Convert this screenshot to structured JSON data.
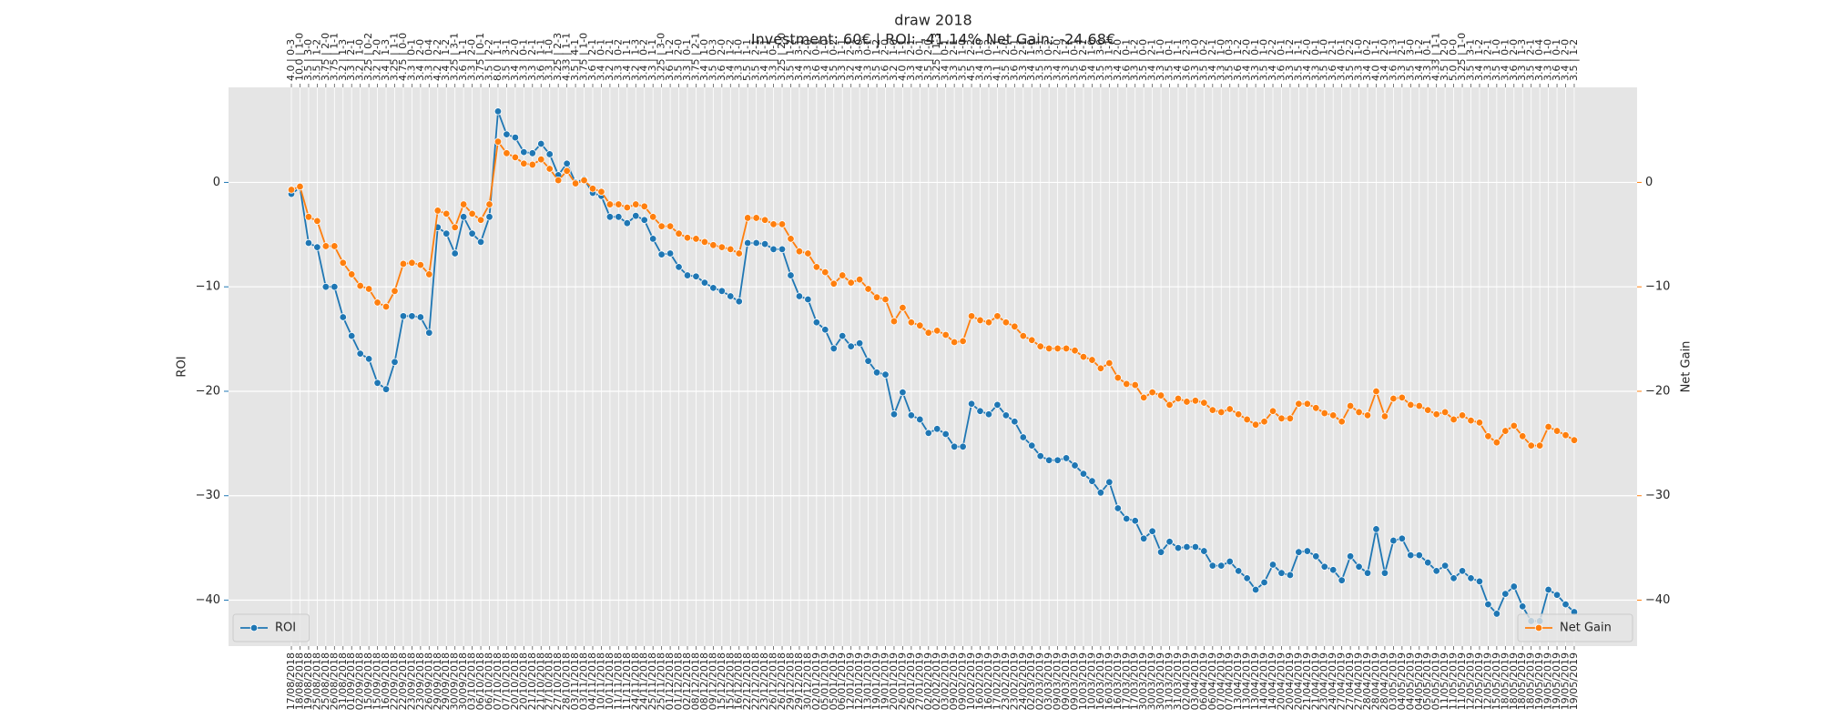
{
  "chart_data": {
    "type": "line",
    "title": "draw 2018",
    "subtitle": "Investment: 60€ | ROI: -41.14% Net Gain: -24.68€",
    "ylabel": "ROI",
    "y2label": "Net Gain",
    "ylim": [
      -44.4,
      9.1
    ],
    "y2lim": [
      -44.4,
      9.1
    ],
    "yticks": [
      {
        "value": -40,
        "label": "−40"
      },
      {
        "value": -30,
        "label": "−30"
      },
      {
        "value": -20,
        "label": "−20"
      },
      {
        "value": -10,
        "label": "−10"
      },
      0
    ],
    "y2ticks": [
      {
        "value": -40,
        "label": "−40"
      },
      {
        "value": -30,
        "label": "−30"
      },
      {
        "value": -20,
        "label": "−20"
      },
      {
        "value": -10,
        "label": "−10"
      },
      0
    ],
    "grid": true,
    "background": "#e5e5e5",
    "categories": [
      "17/08/2018",
      "18/08/2018",
      "19/08/2018",
      "25/08/2018",
      "25/08/2018",
      "26/08/2018",
      "31/08/2018",
      "01/09/2018",
      "02/09/2018",
      "15/09/2018",
      "15/09/2018",
      "16/09/2018",
      "22/09/2018",
      "22/09/2018",
      "23/09/2018",
      "23/09/2018",
      "26/09/2018",
      "29/09/2018",
      "29/09/2018",
      "30/09/2018",
      "30/09/2018",
      "03/10/2018",
      "06/10/2018",
      "06/10/2018",
      "07/10/2018",
      "07/10/2018",
      "20/10/2018",
      "20/10/2018",
      "21/10/2018",
      "21/10/2018",
      "27/10/2018",
      "27/10/2018",
      "28/10/2018",
      "03/11/2018",
      "03/11/2018",
      "04/11/2018",
      "10/11/2018",
      "10/11/2018",
      "11/11/2018",
      "11/11/2018",
      "24/11/2018",
      "24/11/2018",
      "25/11/2018",
      "25/11/2018",
      "01/12/2018",
      "01/12/2018",
      "02/12/2018",
      "08/12/2018",
      "08/12/2018",
      "09/12/2018",
      "15/12/2018",
      "15/12/2018",
      "16/12/2018",
      "22/12/2018",
      "22/12/2018",
      "23/12/2018",
      "26/12/2018",
      "26/12/2018",
      "29/12/2018",
      "29/12/2018",
      "30/12/2018",
      "02/01/2019",
      "05/01/2019",
      "05/01/2019",
      "06/01/2019",
      "12/01/2019",
      "12/01/2019",
      "13/01/2019",
      "19/01/2019",
      "19/01/2019",
      "20/01/2019",
      "26/01/2019",
      "26/01/2019",
      "27/01/2019",
      "02/02/2019",
      "02/02/2019",
      "03/02/2019",
      "09/02/2019",
      "09/02/2019",
      "10/02/2019",
      "16/02/2019",
      "16/02/2019",
      "17/02/2019",
      "23/02/2019",
      "23/02/2019",
      "24/02/2019",
      "02/03/2019",
      "02/03/2019",
      "03/03/2019",
      "09/03/2019",
      "09/03/2019",
      "09/03/2019",
      "10/03/2019",
      "10/03/2019",
      "16/03/2019",
      "16/03/2019",
      "16/03/2019",
      "17/03/2019",
      "17/03/2019",
      "30/03/2019",
      "30/03/2019",
      "30/03/2019",
      "31/03/2019",
      "31/03/2019",
      "02/04/2019",
      "03/04/2019",
      "06/04/2019",
      "06/04/2019",
      "07/04/2019",
      "07/04/2019",
      "13/04/2019",
      "13/04/2019",
      "13/04/2019",
      "14/04/2019",
      "14/04/2019",
      "20/04/2019",
      "20/04/2019",
      "20/04/2019",
      "21/04/2019",
      "21/04/2019",
      "23/04/2019",
      "24/04/2019",
      "27/04/2019",
      "27/04/2019",
      "27/04/2019",
      "28/04/2019",
      "28/04/2019",
      "28/04/2019",
      "03/05/2019",
      "04/05/2019",
      "04/05/2019",
      "04/05/2019",
      "05/05/2019",
      "05/05/2019",
      "11/05/2019",
      "11/05/2019",
      "11/05/2019",
      "12/05/2019",
      "12/05/2019",
      "12/05/2019",
      "15/05/2019",
      "18/05/2019",
      "18/05/2019",
      "18/05/2019",
      "18/05/2019",
      "19/05/2019",
      "19/05/2019",
      "19/05/2019",
      "19/05/2019",
      "19/05/2019"
    ],
    "top_labels": [
      "4.0 | 0-3",
      "10.0 | 1-0",
      "3.5 | 3-0",
      "3.5 | 1-2",
      "3.75 | 2-0",
      "3.75 | 1-1",
      "3.2 | 1-3",
      "3.3 | 2-1",
      "3.2 | 1-0",
      "3.25 | 0-2",
      "3.2 | 2-0",
      "3.4 | 1-3",
      "3.25 | 1-1",
      "4.75 | 0-0",
      "3.3 | 0-1",
      "3.4 | 2-0",
      "3.3 | 0-4",
      "4.2 | 2-2",
      "3.4 | 1-2",
      "3.25 | 3-1",
      "3.6 | 1-1",
      "3.3 | 2-0",
      "3.75 | 0-1",
      "3.5 | 2-2",
      "8.0 | 1-1",
      "3.5 | 3-1",
      "3.4 | 2-0",
      "3.3 | 0-1",
      "3.3 | 2-1",
      "3.6 | 1-1",
      "3.3 | 1-0",
      "3.25 | 2-3",
      "4.33 | 1-1",
      "3.5 | 4-1",
      "3.75 | 1-0",
      "3.6 | 2-1",
      "3.4 | 0-1",
      "3.2 | 2-1",
      "3.3 | 0-2",
      "3.4 | 1-1",
      "3.2 | 1-3",
      "3.4 | 0-2",
      "3.3 | 1-1",
      "3.25 | 3-0",
      "3.6 | 1-2",
      "3.5 | 2-0",
      "3.3 | 0-1",
      "3.75 | 2-1",
      "3.4 | 1-0",
      "3.5 | 0-3",
      "3.6 | 2-0",
      "3.4 | 1-2",
      "3.3 | 1-0",
      "5.5 | 1-1",
      "3.5 | 2-1",
      "3.4 | 1-1",
      "3.3 | 0-1",
      "3.25 | 2-0",
      "3.5 | 1-2",
      "3.4 | 3-1",
      "3.3 | 2-0",
      "3.6 | 0-1",
      "3.4 | 1-0",
      "3.5 | 0-2",
      "3.3 | 1-1",
      "3.2 | 2-1",
      "3.4 | 3-0",
      "3.3 | 0-1",
      "3.5 | 1-2",
      "3.6 | 2-0",
      "3.2 | 1-0",
      "4.0 | 1-1",
      "3.3 | 2-1",
      "3.4 | 0-1",
      "3.5 | 2-0",
      "3.25 | 1-3",
      "3.4 | 0-1",
      "3.3 | 2-1",
      "3.5 | 1-0",
      "4.5 | 2-2",
      "3.4 | 1-0",
      "3.3 | 0-2",
      "4.1 | 1-1",
      "3.5 | 2-0",
      "3.6 | 0-1",
      "3.3 | 2-1",
      "3.4 | 1-0",
      "3.5 | 3-1",
      "3.3 | 0-2",
      "3.4 | 2-0",
      "3.3 | 1-2",
      "3.5 | 0-1",
      "3.6 | 2-1",
      "3.4 | 1-0",
      "3.5 | 3-0",
      "3.3 | 1-1",
      "3.4 | 2-0",
      "3.6 | 0-1",
      "3.3 | 1-2",
      "3.5 | 0-0",
      "3.4 | 2-1",
      "3.3 | 1-0",
      "3.5 | 0-1",
      "3.4 | 1-1",
      "3.6 | 2-3",
      "3.3 | 1-0",
      "3.5 | 0-2",
      "3.4 | 2-1",
      "3.3 | 1-0",
      "3.5 | 0-3",
      "3.6 | 1-2",
      "3.4 | 2-0",
      "3.3 | 0-1",
      "3.5 | 1-0",
      "3.4 | 2-2",
      "3.6 | 0-1",
      "3.3 | 1-2",
      "3.5 | 1-1",
      "3.4 | 2-0",
      "3.3 | 0-1",
      "3.5 | 1-0",
      "3.6 | 2-1",
      "3.4 | 0-1",
      "3.5 | 2-2",
      "3.3 | 1-0",
      "3.4 | 0-2",
      "4.0 | 1-1",
      "3.4 | 2-0",
      "3.6 | 1-3",
      "3.3 | 2-1",
      "3.5 | 3-0",
      "3.4 | 1-2",
      "3.3 | 0-1",
      "4.33 | 1-1",
      "3.5 | 2-0",
      "5.0 | 0-0",
      "3.25 | 1-0",
      "3.5 | 3-1",
      "3.4 | 1-2",
      "3.3 | 2-1",
      "3.5 | 1-0",
      "3.4 | 0-1",
      "3.6 | 2-0",
      "3.3 | 1-3",
      "3.5 | 2-1",
      "3.4 | 0-4",
      "3.3 | 1-0",
      "3.6 | 0-1",
      "3.4 | 2-0",
      "3.5 | 1-2"
    ],
    "series": [
      {
        "name": "ROI",
        "color": "#1f77b4",
        "axis": "y",
        "legend": "lower left",
        "values": [
          -1.1,
          -0.5,
          -5.8,
          -6.2,
          -10.0,
          -10.0,
          -12.9,
          -14.7,
          -16.4,
          -16.9,
          -19.2,
          -19.8,
          -17.2,
          -12.8,
          -12.8,
          -12.9,
          -14.4,
          -4.3,
          -4.9,
          -6.8,
          -3.3,
          -4.9,
          -5.7,
          -3.3,
          6.8,
          4.6,
          4.3,
          2.9,
          2.8,
          3.7,
          2.7,
          0.7,
          1.8,
          0.0,
          0.3,
          -1.0,
          -1.3,
          -3.3,
          -3.3,
          -3.9,
          -3.2,
          -3.6,
          -5.4,
          -6.9,
          -6.8,
          -8.1,
          -8.9,
          -9.0,
          -9.6,
          -10.1,
          -10.4,
          -10.9,
          -11.4,
          -5.8,
          -5.8,
          -5.9,
          -6.4,
          -6.4,
          -8.9,
          -10.9,
          -11.2,
          -13.4,
          -14.1,
          -15.9,
          -14.7,
          -15.7,
          -15.4,
          -17.1,
          -18.2,
          -18.4,
          -22.2,
          -20.1,
          -22.3,
          -22.7,
          -24.0,
          -23.6,
          -24.1,
          -25.3,
          -25.3,
          -21.2,
          -21.9,
          -22.2,
          -21.3,
          -22.3,
          -22.9,
          -24.4,
          -25.2,
          -26.2,
          -26.6,
          -26.6,
          -26.4,
          -27.1,
          -27.9,
          -28.6,
          -29.7,
          -28.7,
          -31.2,
          -32.2,
          -32.4,
          -34.1,
          -33.4,
          -35.4,
          -34.4,
          -35.0,
          -34.9,
          -34.9,
          -35.3,
          -36.7,
          -36.7,
          -36.3,
          -37.2,
          -37.9,
          -39.0,
          -38.3,
          -36.6,
          -37.4,
          -37.6,
          -35.4,
          -35.3,
          -35.8,
          -36.8,
          -37.1,
          -38.1,
          -35.8,
          -36.8,
          -37.4,
          -33.2,
          -37.4,
          -34.3,
          -34.1,
          -35.7,
          -35.7,
          -36.4,
          -37.2,
          -36.7,
          -37.9,
          -37.2,
          -37.9,
          -38.2,
          -40.4,
          -41.3,
          -39.4,
          -38.7,
          -40.6,
          -42.0,
          -42.0,
          -39.0,
          -39.5,
          -40.4,
          -41.14
        ]
      },
      {
        "name": "Net Gain",
        "color": "#ff7f0e",
        "axis": "y2",
        "legend": "lower right",
        "values": [
          -0.7,
          -0.4,
          -3.3,
          -3.7,
          -6.1,
          -6.1,
          -7.7,
          -8.8,
          -9.9,
          -10.2,
          -11.5,
          -11.9,
          -10.4,
          -7.8,
          -7.7,
          -7.9,
          -8.8,
          -2.7,
          -3.0,
          -4.3,
          -2.1,
          -3.0,
          -3.6,
          -2.1,
          3.9,
          2.8,
          2.4,
          1.8,
          1.7,
          2.2,
          1.3,
          0.2,
          1.1,
          -0.1,
          0.2,
          -0.6,
          -0.9,
          -2.1,
          -2.1,
          -2.4,
          -2.1,
          -2.3,
          -3.3,
          -4.2,
          -4.2,
          -4.9,
          -5.3,
          -5.4,
          -5.7,
          -6.0,
          -6.2,
          -6.4,
          -6.8,
          -3.4,
          -3.4,
          -3.6,
          -4.0,
          -4.0,
          -5.4,
          -6.6,
          -6.8,
          -8.1,
          -8.6,
          -9.7,
          -8.9,
          -9.6,
          -9.3,
          -10.2,
          -11.0,
          -11.2,
          -13.3,
          -12.0,
          -13.4,
          -13.7,
          -14.4,
          -14.2,
          -14.6,
          -15.3,
          -15.2,
          -12.8,
          -13.2,
          -13.4,
          -12.8,
          -13.4,
          -13.8,
          -14.7,
          -15.1,
          -15.7,
          -15.9,
          -15.9,
          -15.9,
          -16.1,
          -16.7,
          -17.0,
          -17.8,
          -17.3,
          -18.7,
          -19.3,
          -19.4,
          -20.6,
          -20.1,
          -20.4,
          -21.3,
          -20.7,
          -21.0,
          -20.9,
          -21.1,
          -21.8,
          -22.0,
          -21.7,
          -22.2,
          -22.7,
          -23.2,
          -22.9,
          -21.9,
          -22.6,
          -22.6,
          -21.2,
          -21.2,
          -21.6,
          -22.1,
          -22.3,
          -22.9,
          -21.4,
          -22.0,
          -22.3,
          -20.0,
          -22.4,
          -20.7,
          -20.6,
          -21.3,
          -21.4,
          -21.8,
          -22.2,
          -22.0,
          -22.7,
          -22.3,
          -22.8,
          -23.0,
          -24.3,
          -24.9,
          -23.8,
          -23.3,
          -24.3,
          -25.2,
          -25.2,
          -23.4,
          -23.8,
          -24.2,
          -24.68
        ]
      }
    ]
  }
}
